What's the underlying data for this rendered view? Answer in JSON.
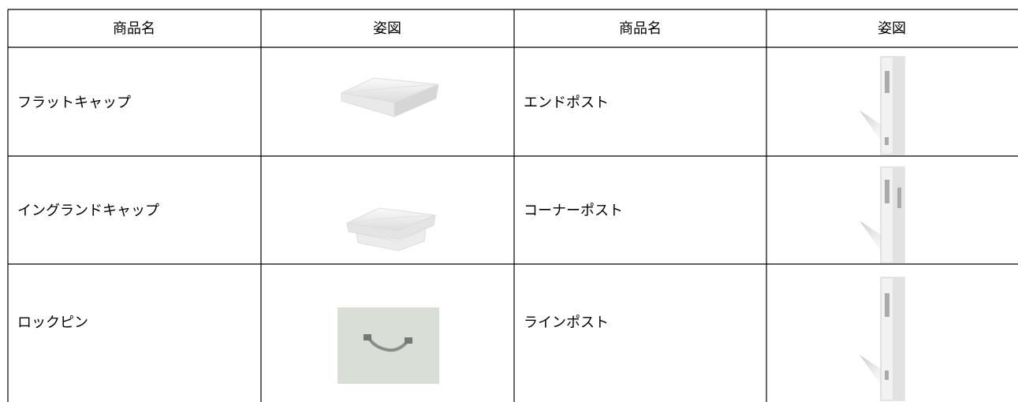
{
  "table": {
    "header": [
      "商品名",
      "姿図",
      "商品名",
      "姿図"
    ],
    "rows": [
      [
        "フラットキャップ",
        "エンドポスト"
      ],
      [
        "イングランドキャップ",
        "コーナーポスト"
      ],
      [
        "ロックピン",
        "ラインポスト"
      ]
    ]
  }
}
